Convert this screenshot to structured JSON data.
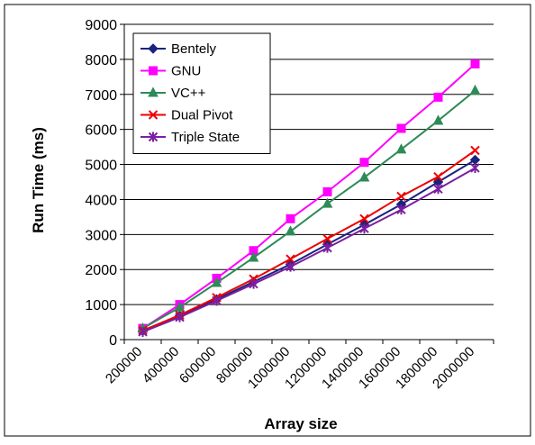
{
  "chart_data": {
    "type": "line",
    "xlabel": "Array size",
    "ylabel": "Run Time (ms)",
    "ylim": [
      0,
      9000
    ],
    "yticks": [
      0,
      1000,
      2000,
      3000,
      4000,
      5000,
      6000,
      7000,
      8000,
      9000
    ],
    "xticks": [
      200000,
      400000,
      600000,
      800000,
      1000000,
      1200000,
      1400000,
      1600000,
      1800000,
      2000000
    ],
    "grid": "horizontal",
    "legend_position": "top-left",
    "x": [
      300000,
      500000,
      700000,
      900000,
      1100000,
      1300000,
      1500000,
      1700000,
      1900000,
      2100000
    ],
    "series": [
      {
        "name": "Bentely",
        "color": "#1a237e",
        "marker": "diamond",
        "values": [
          250,
          680,
          1150,
          1650,
          2150,
          2720,
          3280,
          3860,
          4500,
          5130
        ]
      },
      {
        "name": "GNU",
        "color": "#ff00ff",
        "marker": "square",
        "values": [
          320,
          1000,
          1750,
          2540,
          3450,
          4220,
          5060,
          6030,
          6920,
          7870
        ]
      },
      {
        "name": "VC++",
        "color": "#2e8b57",
        "marker": "triangle",
        "values": [
          320,
          920,
          1620,
          2340,
          3090,
          3880,
          4630,
          5430,
          6250,
          7110
        ]
      },
      {
        "name": "Dual Pivot",
        "color": "#ee0000",
        "marker": "x",
        "values": [
          260,
          700,
          1200,
          1730,
          2300,
          2880,
          3450,
          4090,
          4650,
          5400
        ]
      },
      {
        "name": "Triple State",
        "color": "#7b1fa2",
        "marker": "star",
        "values": [
          220,
          640,
          1110,
          1590,
          2080,
          2620,
          3170,
          3710,
          4300,
          4900
        ]
      }
    ]
  }
}
